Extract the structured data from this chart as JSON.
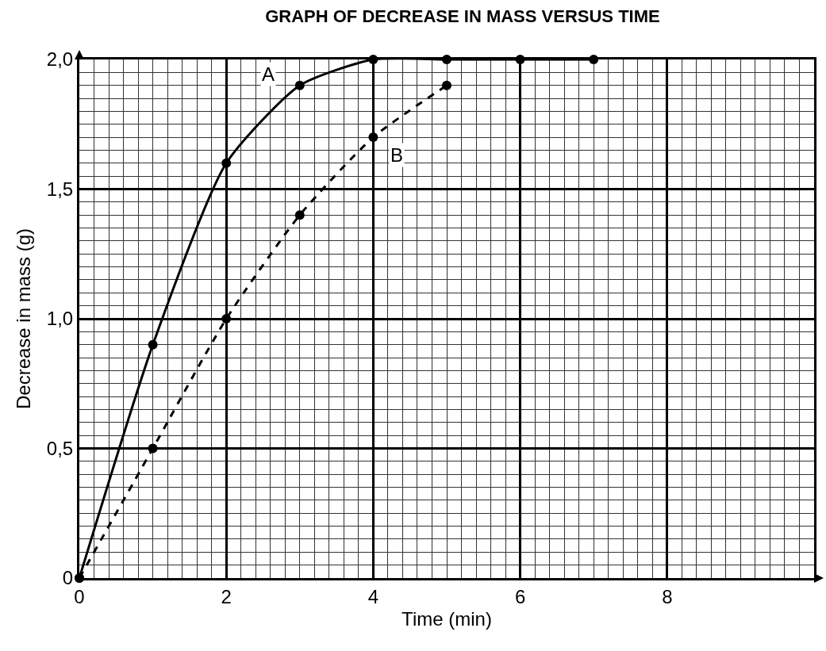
{
  "chart_data": {
    "type": "line",
    "title": "GRAPH OF DECREASE IN MASS VERSUS TIME",
    "xlabel": "Time (min)",
    "ylabel": "Decrease in mass (g)",
    "xlim": [
      0,
      10
    ],
    "xticks": [
      0,
      2,
      4,
      6,
      8
    ],
    "ylim": [
      0,
      2.0
    ],
    "yticks": [
      0,
      {
        "value": 0.5,
        "label": "0,5"
      },
      {
        "value": 1.0,
        "label": "1,0"
      },
      {
        "value": 1.5,
        "label": "1,5"
      },
      {
        "value": 2.0,
        "label": "2,0"
      }
    ],
    "grid": true,
    "marker": "circle",
    "series": [
      {
        "name": "A",
        "color": "#000000",
        "line_style": "solid",
        "x": [
          0,
          1,
          2,
          3,
          4,
          5,
          6,
          7
        ],
        "values": [
          0,
          0.9,
          1.6,
          1.9,
          2.0,
          2.0,
          2.0,
          2.0
        ]
      },
      {
        "name": "B",
        "color": "#000000",
        "line_style": "dashed",
        "x": [
          0,
          1,
          2,
          3,
          4,
          5
        ],
        "values": [
          0,
          0.5,
          1.0,
          1.4,
          1.7,
          1.9
        ]
      }
    ]
  }
}
